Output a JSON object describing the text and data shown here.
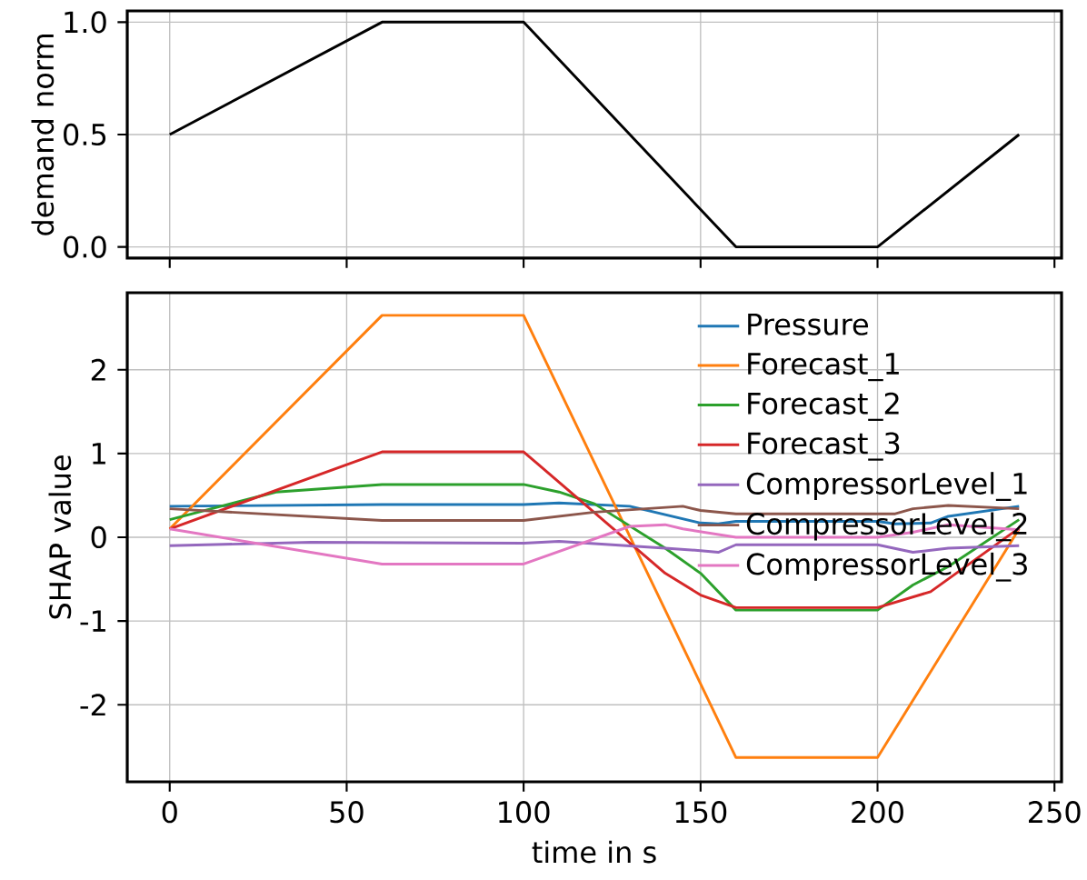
{
  "chart_data": [
    {
      "type": "line",
      "ylabel": "demand norm",
      "x": [
        0,
        60,
        100,
        160,
        200,
        240
      ],
      "values": [
        0.5,
        1.0,
        1.0,
        0.0,
        0.0,
        0.5
      ],
      "color": "#000000",
      "xlim": [
        -12,
        252
      ],
      "ylim": [
        -0.05,
        1.05
      ],
      "xticks": [
        0,
        50,
        100,
        150,
        200,
        250
      ],
      "yticks": [
        {
          "value": 0,
          "label": "0.0"
        },
        {
          "value": 0.5,
          "label": "0.5"
        },
        {
          "value": 1,
          "label": "1.0"
        }
      ],
      "tick_labels": "y",
      "grid": true
    },
    {
      "type": "line",
      "xlabel": "time in s",
      "ylabel": "SHAP value",
      "xlim": [
        -12,
        252
      ],
      "ylim": [
        -2.92,
        2.92
      ],
      "xticks": [
        0,
        50,
        100,
        150,
        200,
        250
      ],
      "yticks": [
        -2,
        -1,
        0,
        1,
        2
      ],
      "grid": true,
      "legend": "top right",
      "series": [
        {
          "name": "Pressure",
          "color": "#1f77b4",
          "x": [
            0,
            60,
            100,
            110,
            130,
            150,
            155,
            160,
            200,
            205,
            215,
            220,
            240
          ],
          "values": [
            0.37,
            0.39,
            0.39,
            0.41,
            0.37,
            0.17,
            0.16,
            0.19,
            0.19,
            0.16,
            0.17,
            0.25,
            0.37
          ]
        },
        {
          "name": "Forecast_1",
          "color": "#ff7f0e",
          "x": [
            0,
            60,
            100,
            160,
            200,
            240
          ],
          "values": [
            0.1,
            2.65,
            2.65,
            -2.63,
            -2.63,
            0.1
          ]
        },
        {
          "name": "Forecast_2",
          "color": "#2ca02c",
          "x": [
            0,
            30,
            60,
            100,
            110,
            120,
            140,
            150,
            160,
            200,
            210,
            220,
            240
          ],
          "values": [
            0.21,
            0.54,
            0.63,
            0.63,
            0.54,
            0.4,
            -0.13,
            -0.43,
            -0.87,
            -0.87,
            -0.57,
            -0.35,
            0.21
          ]
        },
        {
          "name": "Forecast_3",
          "color": "#d62728",
          "x": [
            0,
            60,
            100,
            140,
            150,
            160,
            200,
            215,
            240
          ],
          "values": [
            0.1,
            1.02,
            1.02,
            -0.43,
            -0.69,
            -0.84,
            -0.84,
            -0.65,
            0.11
          ]
        },
        {
          "name": "CompressorLevel_1",
          "color": "#9467bd",
          "x": [
            0,
            40,
            100,
            110,
            140,
            150,
            155,
            160,
            200,
            210,
            220,
            240
          ],
          "values": [
            -0.1,
            -0.06,
            -0.07,
            -0.05,
            -0.13,
            -0.16,
            -0.18,
            -0.09,
            -0.09,
            -0.18,
            -0.13,
            -0.1
          ]
        },
        {
          "name": "CompressorLevel_2",
          "color": "#8c564b",
          "x": [
            0,
            60,
            100,
            120,
            145,
            150,
            160,
            200,
            205,
            210,
            220,
            240
          ],
          "values": [
            0.34,
            0.2,
            0.2,
            0.3,
            0.37,
            0.32,
            0.28,
            0.28,
            0.28,
            0.34,
            0.38,
            0.34
          ]
        },
        {
          "name": "CompressorLevel_3",
          "color": "#e377c2",
          "x": [
            0,
            60,
            100,
            130,
            140,
            145,
            160,
            200,
            210,
            220,
            240
          ],
          "values": [
            0.1,
            -0.32,
            -0.32,
            0.13,
            0.15,
            0.1,
            0.0,
            0.0,
            0.06,
            0.15,
            0.09
          ]
        }
      ]
    }
  ]
}
